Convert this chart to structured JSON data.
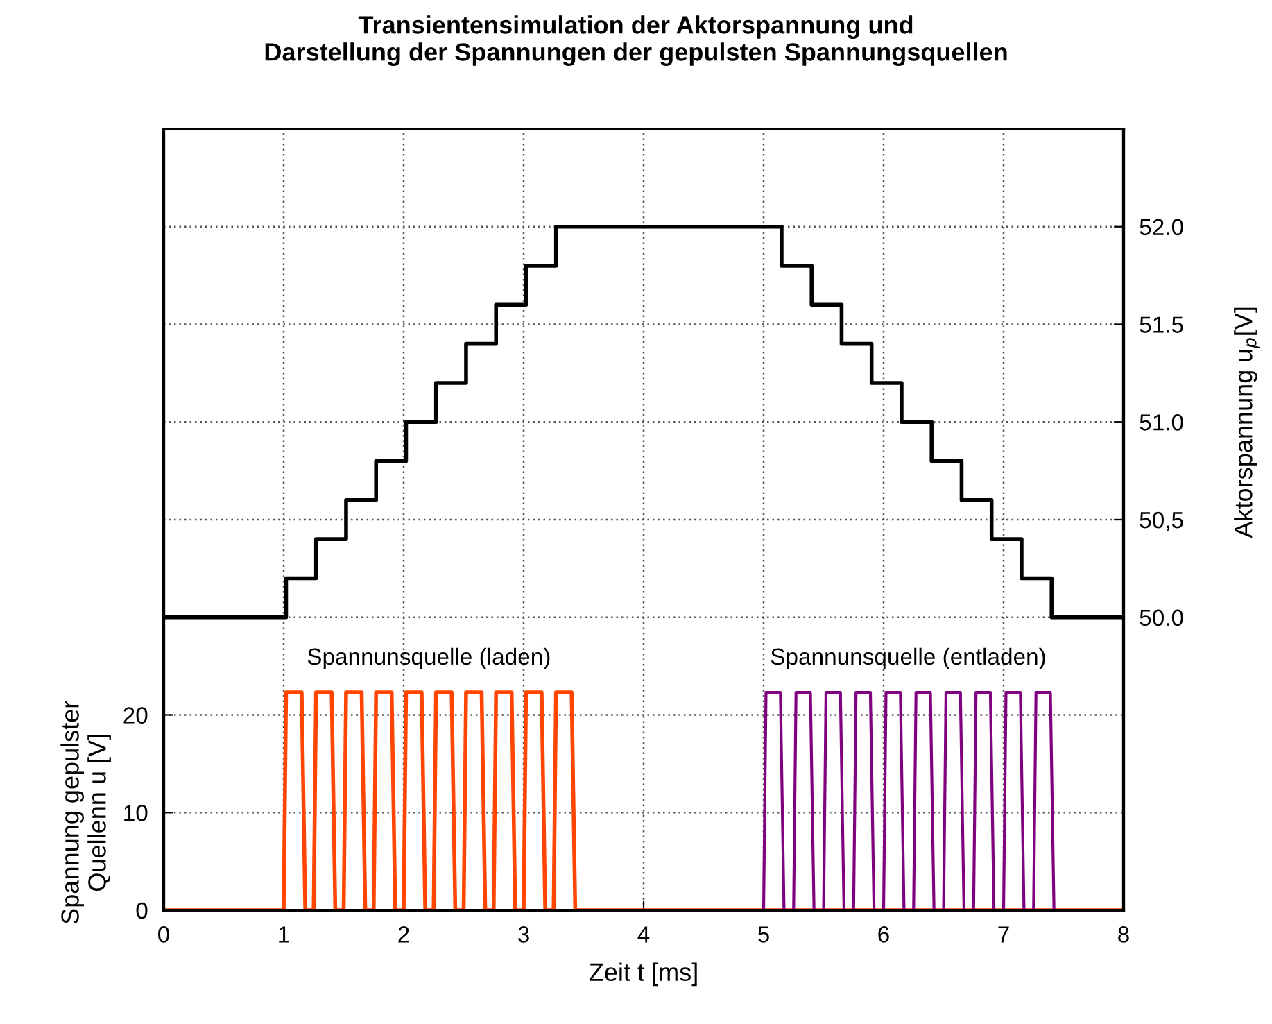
{
  "chart_data": {
    "type": "line",
    "title": "Transientensimulation der Aktorspannung und\nDarstellung der Spannungen der gepulsten Spannungsquellen",
    "xlabel": "Zeit t [ms]",
    "ylabel": "Spannung gepulster\nQuellenn u [V]",
    "y2label": "Aktorspannung u$_{p}$[V]",
    "xlim": [
      0,
      8
    ],
    "xticks": [
      0,
      1,
      2,
      3,
      4,
      5,
      6,
      7,
      8
    ],
    "ylim": [
      0,
      80
    ],
    "yticks": [
      0,
      10,
      20
    ],
    "y2lim": [
      48.5,
      52.5
    ],
    "y2ticks": [
      {
        "value": 50,
        "label": "50.0"
      },
      {
        "value": 50.5,
        "label": "50,5"
      },
      {
        "value": 51,
        "label": "51.0"
      },
      {
        "value": 51.5,
        "label": "51.5"
      },
      {
        "value": 52,
        "label": "52.0"
      }
    ],
    "grid": true,
    "series": [
      {
        "name": "Spannunsquelle (laden)",
        "color": "#ff4500",
        "x": [
          0,
          1.0,
          1.02,
          1.15,
          1.18,
          1.25,
          1.27,
          1.4,
          1.43,
          1.5,
          1.52,
          1.65,
          1.68,
          1.75,
          1.77,
          1.9,
          1.93,
          2.0,
          2.02,
          2.15,
          2.18,
          2.25,
          2.27,
          2.4,
          2.43,
          2.5,
          2.52,
          2.65,
          2.68,
          2.75,
          2.77,
          2.9,
          2.93,
          3.0,
          3.02,
          3.15,
          3.18,
          3.25,
          3.27,
          3.4,
          3.43,
          8
        ],
        "values": [
          0,
          0,
          22.3,
          22.3,
          0,
          0,
          22.3,
          22.3,
          0,
          0,
          22.3,
          22.3,
          0,
          0,
          22.3,
          22.3,
          0,
          0,
          22.3,
          22.3,
          0,
          0,
          22.3,
          22.3,
          0,
          0,
          22.3,
          22.3,
          0,
          0,
          22.3,
          22.3,
          0,
          0,
          22.3,
          22.3,
          0,
          0,
          22.3,
          22.3,
          0,
          0
        ]
      },
      {
        "name": "Spannunsquelle (entladen)",
        "color": "#800080",
        "x": [
          0,
          5.0,
          5.02,
          5.14,
          5.17,
          5.25,
          5.27,
          5.39,
          5.42,
          5.5,
          5.52,
          5.64,
          5.67,
          5.75,
          5.77,
          5.89,
          5.92,
          6.0,
          6.02,
          6.14,
          6.17,
          6.25,
          6.27,
          6.39,
          6.42,
          6.5,
          6.52,
          6.64,
          6.67,
          6.75,
          6.77,
          6.89,
          6.92,
          7.0,
          7.02,
          7.14,
          7.17,
          7.25,
          7.27,
          7.39,
          7.42,
          8
        ],
        "values": [
          0,
          0,
          22.3,
          22.3,
          0,
          0,
          22.3,
          22.3,
          0,
          0,
          22.3,
          22.3,
          0,
          0,
          22.3,
          22.3,
          0,
          0,
          22.3,
          22.3,
          0,
          0,
          22.3,
          22.3,
          0,
          0,
          22.3,
          22.3,
          0,
          0,
          22.3,
          22.3,
          0,
          0,
          22.3,
          22.3,
          0,
          0,
          22.3,
          22.3,
          0,
          0
        ]
      },
      {
        "type": "step",
        "axis": "y2",
        "color": "#000000",
        "x": [
          0,
          1.02,
          1.27,
          1.52,
          1.77,
          2.02,
          2.27,
          2.52,
          2.77,
          3.02,
          3.27,
          5.15,
          5.4,
          5.65,
          5.9,
          6.15,
          6.4,
          6.65,
          6.9,
          7.15,
          7.4,
          8
        ],
        "values": [
          50.0,
          50.2,
          50.4,
          50.6,
          50.8,
          51.0,
          51.2,
          51.4,
          51.6,
          51.8,
          52.0,
          51.8,
          51.6,
          51.4,
          51.2,
          51.0,
          50.8,
          50.6,
          50.4,
          50.2,
          50.0,
          50.0
        ]
      }
    ]
  }
}
